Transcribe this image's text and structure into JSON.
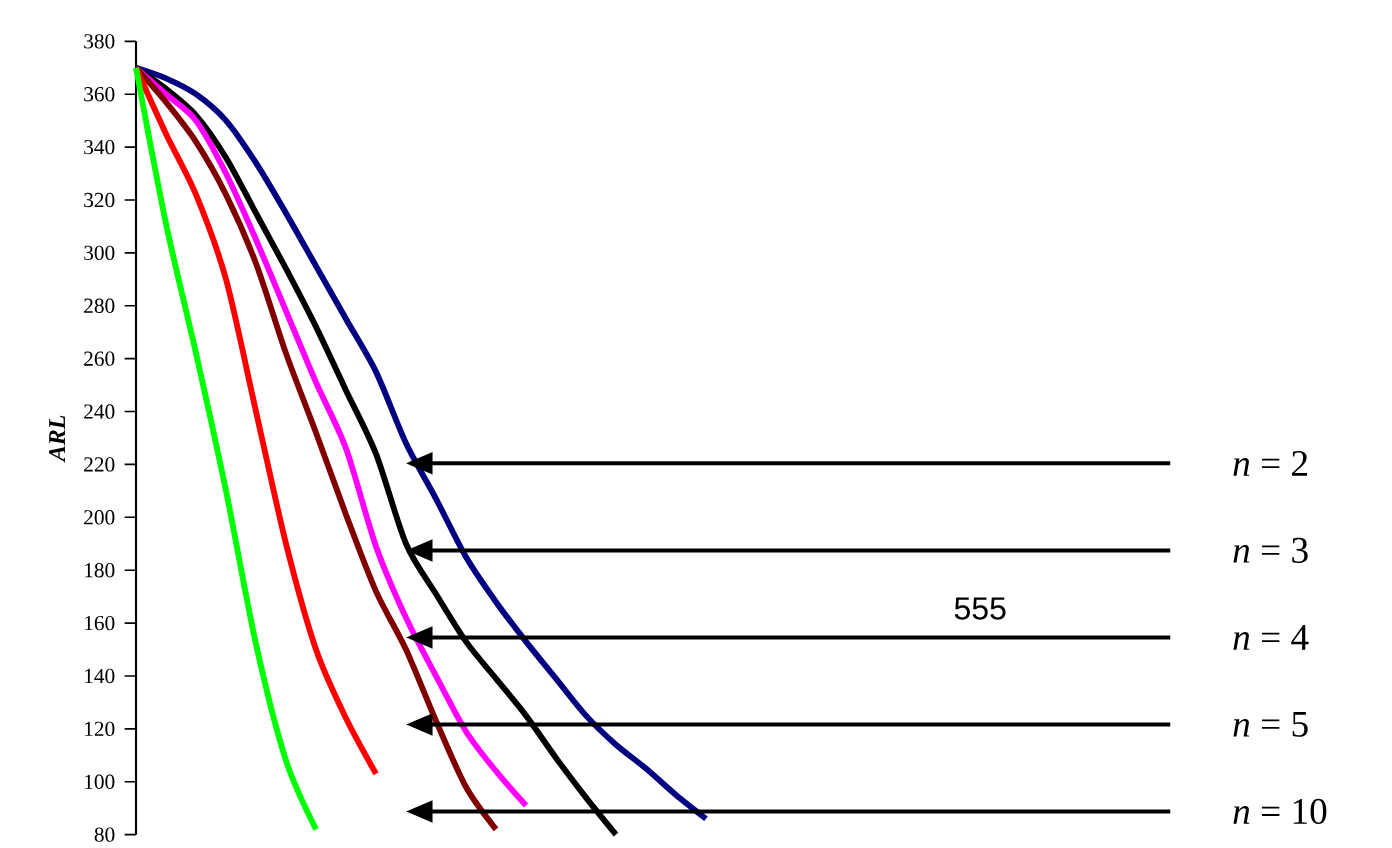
{
  "chart_data": {
    "type": "line",
    "ylabel": "ARL",
    "ylim": [
      80,
      380
    ],
    "yticks": [
      80,
      100,
      120,
      140,
      160,
      180,
      200,
      220,
      240,
      260,
      280,
      300,
      320,
      340,
      360,
      380
    ],
    "tick_labels": "y",
    "categories": [
      null,
      null,
      null,
      null,
      null,
      null,
      null,
      null,
      null,
      null,
      null,
      null,
      null,
      null,
      null,
      null,
      null,
      null,
      null,
      null,
      null,
      null,
      null,
      null,
      null,
      null,
      null,
      null,
      null,
      null,
      null,
      null,
      null,
      null,
      null,
      null
    ],
    "series": [
      {
        "color": "#000080",
        "values": [
          370,
          366,
          360,
          350,
          334,
          315,
          295,
          275,
          255,
          228,
          207,
          185,
          168,
          153,
          139,
          125,
          114,
          105,
          95,
          86,
          null,
          null,
          null,
          null,
          null,
          null,
          null,
          null,
          null,
          null,
          null,
          null,
          null,
          null,
          null,
          null
        ]
      },
      {
        "color": "#000000",
        "values": [
          370,
          362,
          352,
          336,
          315,
          294,
          272,
          248,
          224,
          190,
          171,
          153,
          139,
          125,
          109,
          94,
          80,
          null,
          null,
          null,
          null,
          null,
          null,
          null,
          null,
          null,
          null,
          null,
          null,
          null,
          null,
          null,
          null,
          null,
          null,
          null
        ]
      },
      {
        "color": "#ff00ff",
        "values": [
          370,
          360,
          350,
          330,
          305,
          278,
          251,
          226,
          189,
          162,
          140,
          119,
          104,
          91,
          null,
          null,
          null,
          null,
          null,
          null,
          null,
          null,
          null,
          null,
          null,
          null,
          null,
          null,
          null,
          null,
          null,
          null,
          null,
          null,
          null,
          null
        ]
      },
      {
        "color": "#800000",
        "values": [
          370,
          357,
          342,
          322,
          296,
          262,
          232,
          201,
          172,
          150,
          123,
          98,
          82,
          null,
          null,
          null,
          null,
          null,
          null,
          null,
          null,
          null,
          null,
          null,
          null,
          null,
          null,
          null,
          null,
          null,
          null,
          null,
          null,
          null,
          null,
          null
        ]
      },
      {
        "color": "#ff0000",
        "values": [
          370,
          345,
          322,
          290,
          240,
          190,
          150,
          124,
          103,
          null,
          null,
          null,
          null,
          null,
          null,
          null,
          null,
          null,
          null,
          null,
          null,
          null,
          null,
          null,
          null,
          null,
          null,
          null,
          null,
          null,
          null,
          null,
          null,
          null,
          null,
          null
        ]
      },
      {
        "color": "#00ff00",
        "values": [
          370,
          311,
          262,
          210,
          152,
          108,
          82,
          null,
          null,
          null,
          null,
          null,
          null,
          null,
          null,
          null,
          null,
          null,
          null,
          null,
          null,
          null,
          null,
          null,
          null,
          null,
          null,
          null,
          null,
          null,
          null,
          null,
          null,
          null,
          null,
          null
        ]
      }
    ],
    "annotations": [
      "*n* = 2",
      "*n* = 3",
      "*n* = 4",
      "*n* = 5",
      "*n* = 10",
      "555"
    ]
  }
}
